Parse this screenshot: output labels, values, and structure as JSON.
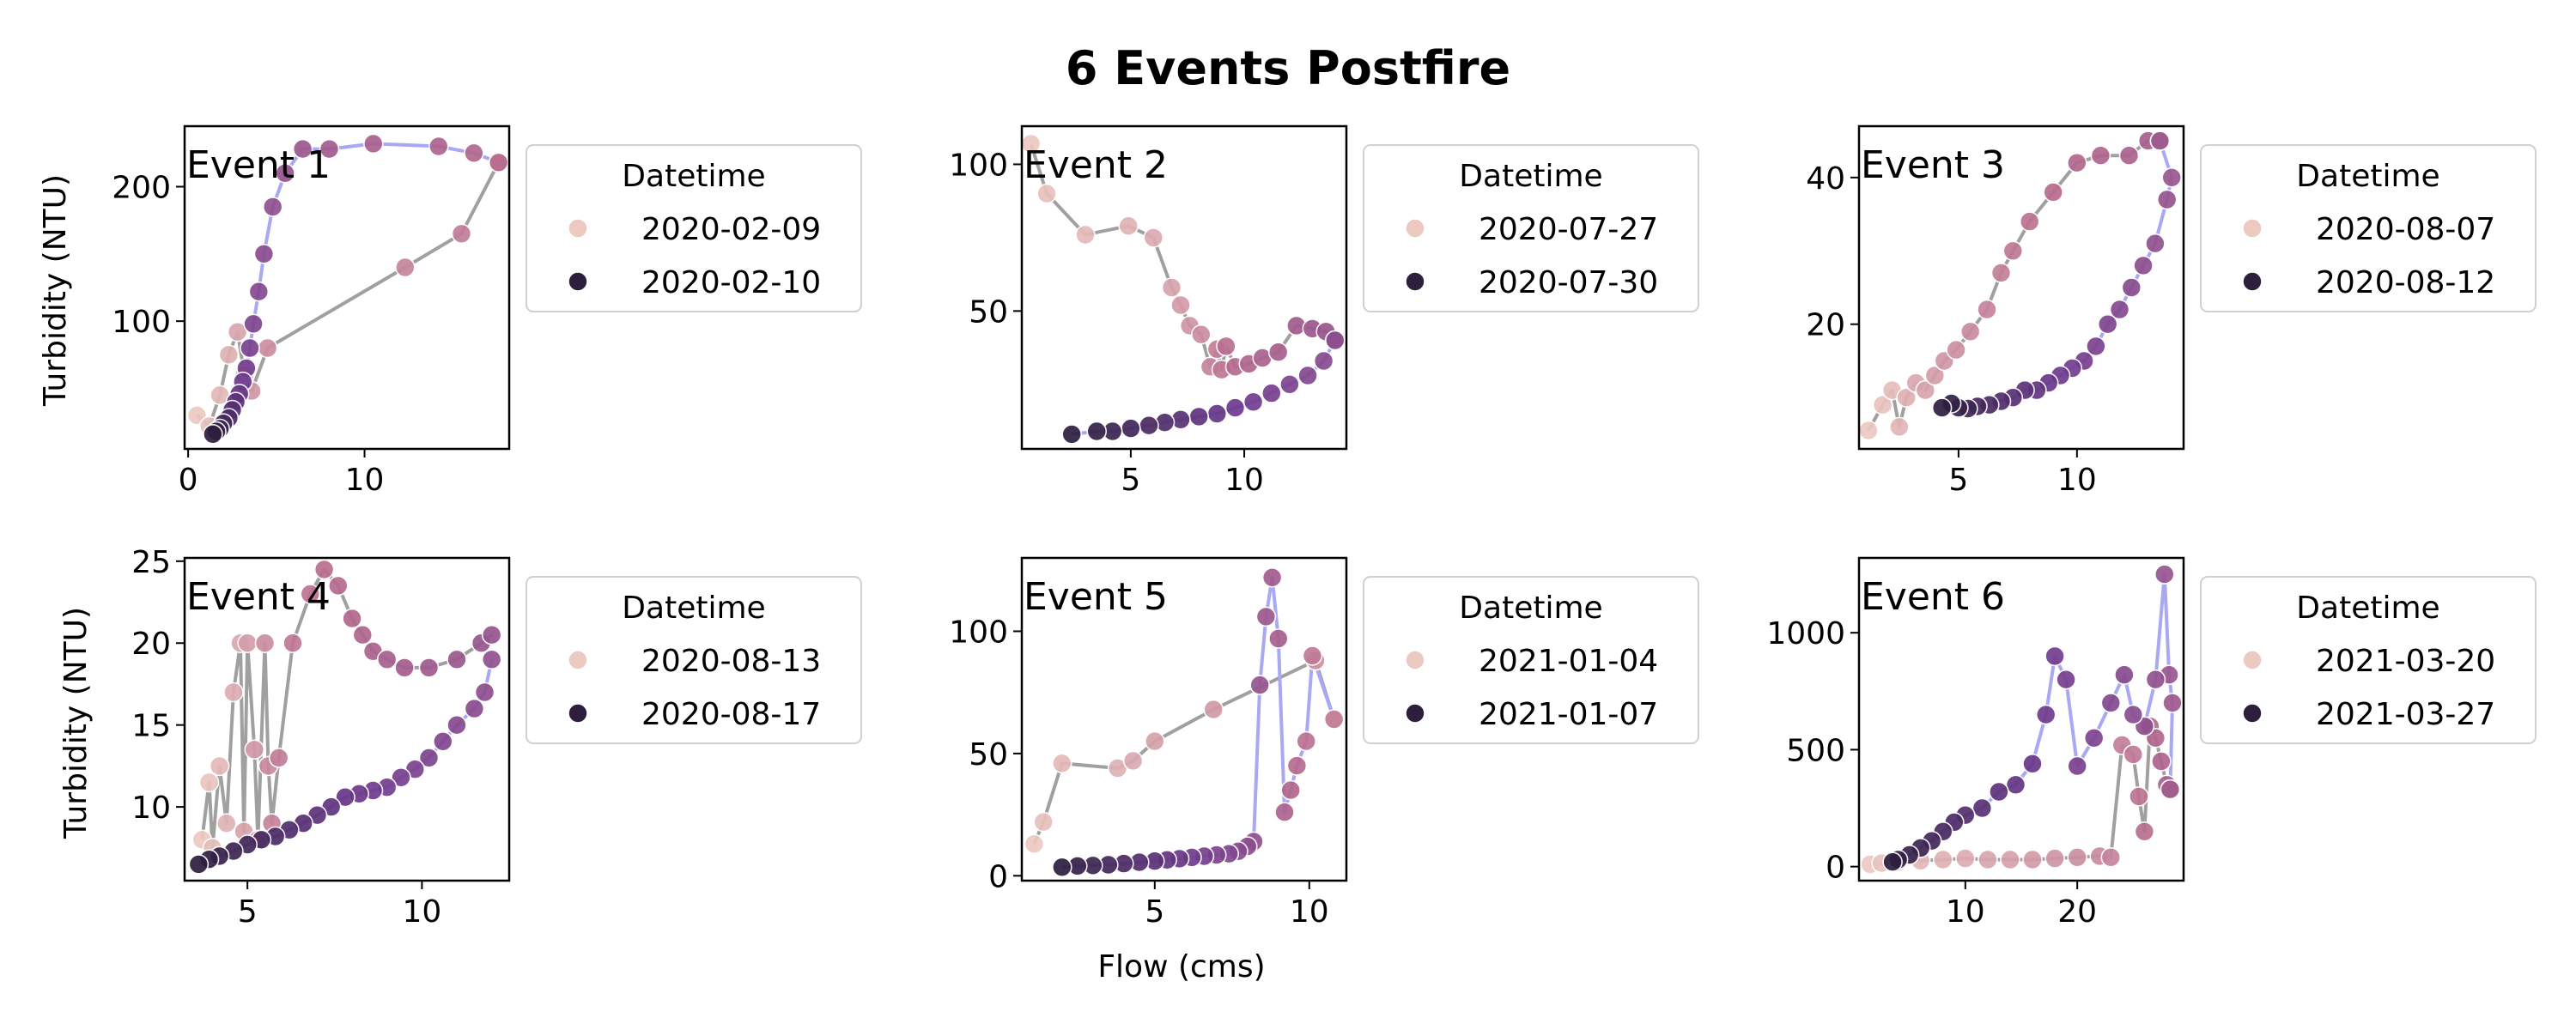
{
  "figure": {
    "title": "6 Events Postfire",
    "xlabel": "Flow (cms)",
    "ylabel": "Turbidity (NTU)",
    "legend_title": "Datetime",
    "colors": {
      "rising_line": "#a0a0a0",
      "falling_line": "#a8a8f5",
      "marker_light": "#ecc9c1",
      "marker_dark": "#2d1e3e",
      "marker_mid": "#b86b8e",
      "marker_purple": "#6e3a8f"
    }
  },
  "chart_data": [
    {
      "type": "scatter",
      "title": "Event 1",
      "xlim": [
        -0.2,
        18.2
      ],
      "ylim": [
        5,
        245
      ],
      "xticks": [
        0,
        10
      ],
      "yticks": [
        100,
        200
      ],
      "legend": [
        "2020-02-09",
        "2020-02-10"
      ],
      "rising": {
        "x": [
          0.5,
          1.2,
          1.8,
          2.3,
          2.8,
          3.2,
          3.6,
          4.5,
          12.3,
          15.5,
          17.6
        ],
        "y": [
          30,
          22,
          45,
          75,
          92,
          60,
          48,
          80,
          140,
          165,
          218
        ]
      },
      "falling": {
        "x": [
          17.6,
          16.2,
          14.2,
          10.5,
          8.0,
          6.5,
          5.5,
          4.8,
          4.3,
          4.0,
          3.7,
          3.5,
          3.3,
          3.1,
          2.9,
          2.7,
          2.5,
          2.3,
          2.0,
          1.8,
          1.6,
          1.4
        ],
        "y": [
          218,
          225,
          230,
          232,
          228,
          228,
          210,
          185,
          150,
          122,
          98,
          80,
          65,
          55,
          46,
          40,
          34,
          28,
          24,
          20,
          18,
          16
        ]
      }
    },
    {
      "type": "scatter",
      "title": "Event 2",
      "xlim": [
        0.2,
        14.5
      ],
      "ylim": [
        3,
        113
      ],
      "xticks": [
        5,
        10
      ],
      "yticks": [
        50,
        100
      ],
      "legend": [
        "2020-07-27",
        "2020-07-30"
      ],
      "rising": {
        "x": [
          0.6,
          1.3,
          3.0,
          4.9,
          6.0,
          6.8,
          7.2,
          7.6,
          8.1,
          8.5,
          8.8,
          9.0,
          9.2,
          9.6,
          10.2,
          10.8,
          11.5,
          12.3,
          13.0,
          13.6,
          14.0
        ],
        "y": [
          107,
          90,
          76,
          79,
          75,
          58,
          52,
          45,
          42,
          31,
          37,
          30,
          38,
          31,
          32,
          34,
          36,
          45,
          44,
          43,
          40
        ]
      },
      "falling": {
        "x": [
          14.0,
          13.5,
          12.8,
          12.0,
          11.2,
          10.4,
          9.6,
          8.8,
          8.0,
          7.2,
          6.5,
          5.8,
          5.0,
          4.2,
          3.5,
          2.4
        ],
        "y": [
          40,
          33,
          28,
          25,
          22,
          19,
          17,
          15,
          14,
          13,
          12,
          11,
          10,
          9,
          9,
          8
        ]
      }
    },
    {
      "type": "scatter",
      "title": "Event 3",
      "xlim": [
        0.8,
        14.5
      ],
      "ylim": [
        3,
        47
      ],
      "xticks": [
        5,
        10
      ],
      "yticks": [
        20,
        40
      ],
      "legend": [
        "2020-08-07",
        "2020-08-12"
      ],
      "rising": {
        "x": [
          1.2,
          1.8,
          2.2,
          2.5,
          2.8,
          3.2,
          3.6,
          4.0,
          4.4,
          4.9,
          5.5,
          6.2,
          6.8,
          7.3,
          8.0,
          9.0,
          10.0,
          11.0,
          12.2,
          13.0,
          13.5
        ],
        "y": [
          5.5,
          9,
          11,
          6,
          10,
          12,
          11,
          13,
          15,
          16.5,
          19,
          22,
          27,
          30,
          34,
          38,
          42,
          43,
          43,
          45,
          45
        ]
      },
      "falling": {
        "x": [
          13.5,
          14.0,
          13.8,
          13.3,
          12.8,
          12.3,
          11.8,
          11.3,
          10.8,
          10.3,
          9.8,
          9.3,
          8.8,
          8.3,
          7.8,
          7.3,
          6.8,
          6.3,
          5.8,
          5.4,
          5.0,
          4.7,
          4.3
        ],
        "y": [
          45,
          40,
          37,
          31,
          28,
          25,
          22,
          20,
          17,
          15,
          14,
          13,
          12,
          11,
          11,
          10,
          9.5,
          9,
          8.8,
          8.5,
          8.6,
          9.2,
          8.6
        ]
      }
    },
    {
      "type": "scatter",
      "title": "Event 4",
      "xlim": [
        3.2,
        12.5
      ],
      "ylim": [
        5.5,
        25.2
      ],
      "xticks": [
        5,
        10
      ],
      "yticks": [
        10,
        15,
        20,
        25
      ],
      "legend": [
        "2020-08-13",
        "2020-08-17"
      ],
      "rising": {
        "x": [
          3.7,
          3.9,
          4.0,
          4.2,
          4.4,
          4.6,
          4.8,
          4.9,
          5.0,
          5.2,
          5.3,
          5.5,
          5.6,
          5.7,
          5.9,
          6.3,
          6.8,
          7.2,
          7.6,
          8.0,
          8.3,
          8.6,
          9.0,
          9.5,
          10.2,
          11.0,
          11.7,
          12.0
        ],
        "y": [
          8,
          11.5,
          7.5,
          12.5,
          9,
          17,
          20,
          8.5,
          20,
          13.5,
          8,
          20,
          12.5,
          9,
          13,
          20,
          23,
          24.5,
          23.5,
          21.5,
          20.5,
          19.5,
          19,
          18.5,
          18.5,
          19,
          20,
          20.5
        ]
      },
      "falling": {
        "x": [
          12.0,
          11.8,
          11.5,
          11.0,
          10.6,
          10.2,
          9.8,
          9.4,
          9.0,
          8.6,
          8.2,
          7.8,
          7.4,
          7.0,
          6.6,
          6.2,
          5.8,
          5.4,
          5.0,
          4.6,
          4.2,
          3.9,
          3.6
        ],
        "y": [
          19,
          17,
          16,
          15,
          14,
          13,
          12.3,
          11.8,
          11.2,
          11,
          10.8,
          10.6,
          10,
          9.5,
          9,
          8.6,
          8.2,
          8,
          7.7,
          7.3,
          7,
          6.8,
          6.5
        ]
      }
    },
    {
      "type": "scatter",
      "title": "Event 5",
      "xlim": [
        0.7,
        11.2
      ],
      "ylim": [
        -2,
        130
      ],
      "xticks": [
        5,
        10
      ],
      "yticks": [
        0,
        50,
        100
      ],
      "legend": [
        "2021-01-04",
        "2021-01-07"
      ],
      "rising": {
        "x": [
          1.1,
          1.4,
          2.0,
          3.8,
          4.3,
          5.0,
          6.9,
          10.2,
          10.8
        ],
        "y": [
          13,
          22,
          46,
          44,
          47,
          55,
          68,
          88,
          64
        ]
      },
      "falling": {
        "x": [
          10.8,
          10.1,
          9.9,
          9.6,
          9.4,
          9.2,
          9.0,
          8.8,
          8.6,
          8.4,
          8.2,
          8.0,
          7.7,
          7.4,
          7.0,
          6.6,
          6.2,
          5.8,
          5.4,
          5.0,
          4.5,
          4.0,
          3.5,
          3.0,
          2.5,
          2.0
        ],
        "y": [
          64,
          90,
          55,
          45,
          35,
          26,
          97,
          122,
          106,
          78,
          14,
          12,
          10,
          9,
          8.5,
          8,
          7.5,
          7,
          6.5,
          6,
          5.5,
          5,
          4.5,
          4.2,
          4,
          3.5
        ]
      }
    },
    {
      "type": "scatter",
      "title": "Event 6",
      "xlim": [
        0.5,
        29.5
      ],
      "ylim": [
        -60,
        1320
      ],
      "xticks": [
        10,
        20
      ],
      "yticks": [
        0,
        500,
        1000
      ],
      "legend": [
        "2021-03-20",
        "2021-03-27"
      ],
      "rising": {
        "x": [
          1.5,
          2.5,
          4.0,
          6.0,
          8.0,
          10.0,
          12.0,
          14.0,
          16.0,
          18.0,
          20.0,
          22.0,
          23.0,
          24.0,
          25.0,
          25.5,
          26.0,
          26.5,
          27.0,
          27.5,
          28.0,
          28.3
        ],
        "y": [
          10,
          15,
          20,
          25,
          30,
          35,
          30,
          30,
          30,
          35,
          40,
          45,
          40,
          520,
          480,
          300,
          150,
          600,
          550,
          450,
          350,
          330
        ]
      },
      "falling": {
        "x": [
          28.3,
          28.5,
          28.2,
          27.8,
          27.0,
          26.0,
          25.0,
          24.2,
          23.0,
          21.5,
          20.0,
          19.0,
          18.0,
          17.2,
          16.0,
          14.5,
          13.0,
          11.5,
          10.0,
          9.0,
          8.0,
          7.0,
          6.0,
          5.0,
          4.0,
          3.5
        ],
        "y": [
          330,
          700,
          820,
          1250,
          800,
          600,
          650,
          820,
          700,
          550,
          430,
          800,
          900,
          650,
          440,
          350,
          320,
          250,
          220,
          190,
          150,
          110,
          80,
          50,
          30,
          20
        ]
      }
    }
  ]
}
